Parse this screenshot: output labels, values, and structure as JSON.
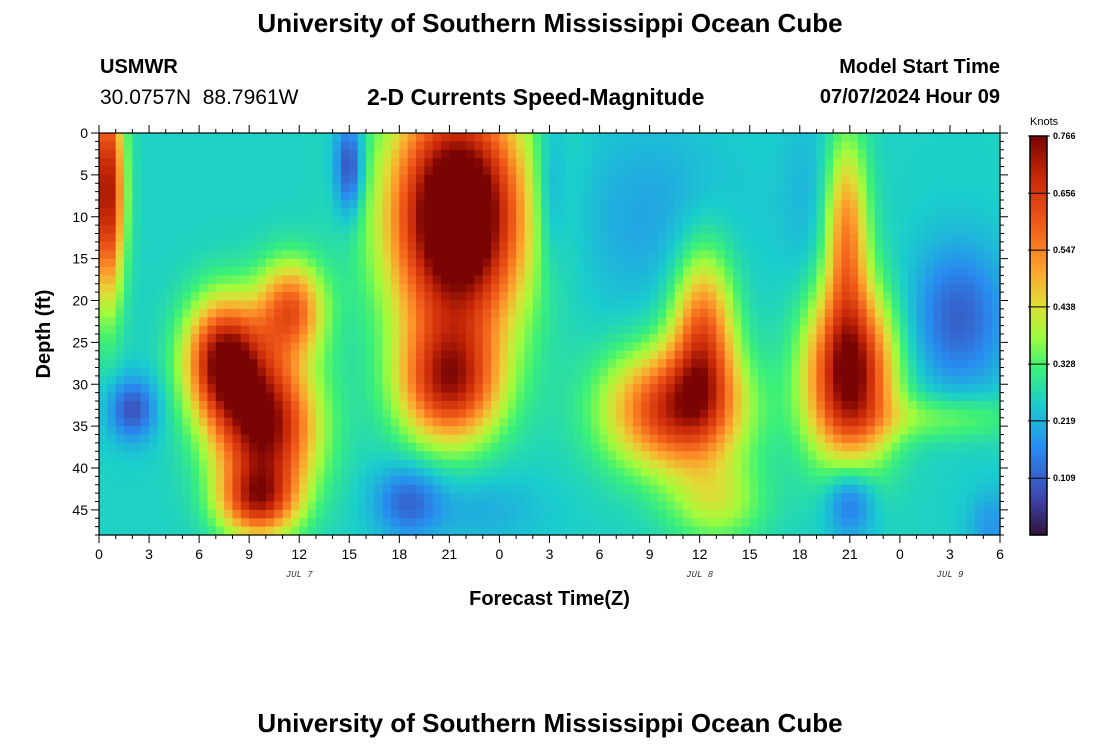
{
  "header": {
    "title_top": "University of Southern Mississippi Ocean Cube",
    "station": "USMWR",
    "coords": "30.0757N  88.7961W",
    "subtitle": "2-D Currents Speed-Magnitude",
    "model_start_label": "Model Start Time",
    "model_start_value": "07/07/2024 Hour 09"
  },
  "footer": {
    "title_bottom": "University of Southern Mississippi Ocean Cube"
  },
  "chart_data": {
    "type": "heatmap",
    "title": "2-D Currents Speed-Magnitude",
    "xlabel": "Forecast Time(Z)",
    "ylabel": "Depth (ft)",
    "x_units": "hours from 00Z Jul 7",
    "xlim": [
      0,
      54
    ],
    "ylim": [
      0,
      48
    ],
    "y_inverted": true,
    "x_ticks": [
      0,
      3,
      6,
      9,
      12,
      15,
      18,
      21,
      24,
      27,
      30,
      33,
      36,
      39,
      42,
      45,
      48,
      51,
      54
    ],
    "x_tick_labels": [
      "0",
      "3",
      "6",
      "9",
      "12",
      "15",
      "18",
      "21",
      "0",
      "3",
      "6",
      "9",
      "12",
      "15",
      "18",
      "21",
      "0",
      "3",
      "6"
    ],
    "date_labels": [
      {
        "x": 12,
        "label": "JUL 7"
      },
      {
        "x": 36,
        "label": "JUL 8"
      },
      {
        "x": 51,
        "label": "JUL 9"
      }
    ],
    "y_ticks": [
      0,
      5,
      10,
      15,
      20,
      25,
      30,
      35,
      40,
      45
    ],
    "colorbar": {
      "unit": "Knots",
      "min": 0.0,
      "max": 0.766,
      "tick_values": [
        0.109,
        0.219,
        0.328,
        0.438,
        0.547,
        0.656,
        0.766
      ],
      "tick_labels": [
        "0.109",
        "0.219",
        "0.328",
        "0.438",
        "0.547",
        "0.656",
        "0.766"
      ]
    },
    "features": [
      {
        "x": 0.5,
        "depth": 7,
        "sx": 0.7,
        "sd": 9,
        "value": 0.48
      },
      {
        "x": 2.0,
        "depth": 33,
        "sx": 1.0,
        "sd": 2.6,
        "value": -0.17
      },
      {
        "x": 7.5,
        "depth": 27,
        "sx": 1.6,
        "sd": 5,
        "value": 0.48
      },
      {
        "x": 10.0,
        "depth": 35,
        "sx": 2.1,
        "sd": 6,
        "value": 0.5
      },
      {
        "x": 9.5,
        "depth": 44,
        "sx": 1.6,
        "sd": 3,
        "value": 0.33
      },
      {
        "x": 11.5,
        "depth": 21,
        "sx": 1.4,
        "sd": 4,
        "value": 0.33
      },
      {
        "x": 15.0,
        "depth": 4,
        "sx": 0.6,
        "sd": 4,
        "value": -0.2
      },
      {
        "x": 21.5,
        "depth": 10,
        "sx": 2.8,
        "sd": 10,
        "value": 0.68
      },
      {
        "x": 21.0,
        "depth": 30,
        "sx": 2.1,
        "sd": 5,
        "value": 0.4
      },
      {
        "x": 18.5,
        "depth": 44,
        "sx": 1.4,
        "sd": 3,
        "value": -0.14
      },
      {
        "x": 23.0,
        "depth": 45,
        "sx": 2.5,
        "sd": 3,
        "value": -0.05
      },
      {
        "x": 27.0,
        "depth": 7,
        "sx": 0.7,
        "sd": 7,
        "value": -0.09
      },
      {
        "x": 34.5,
        "depth": 33,
        "sx": 2.8,
        "sd": 5,
        "value": 0.42
      },
      {
        "x": 36.2,
        "depth": 24,
        "sx": 1.3,
        "sd": 7,
        "value": 0.33
      },
      {
        "x": 33.0,
        "depth": 10,
        "sx": 3.5,
        "sd": 8,
        "value": -0.06
      },
      {
        "x": 37.0,
        "depth": 44,
        "sx": 2.0,
        "sd": 3.5,
        "value": 0.14
      },
      {
        "x": 42.5,
        "depth": 8,
        "sx": 1.2,
        "sd": 8,
        "value": -0.04
      },
      {
        "x": 45.0,
        "depth": 44,
        "sx": 1.0,
        "sd": 3,
        "value": -0.15
      },
      {
        "x": 45.0,
        "depth": 29,
        "sx": 1.8,
        "sd": 7,
        "value": 0.52
      },
      {
        "x": 44.8,
        "depth": 12,
        "sx": 0.9,
        "sd": 8,
        "value": 0.28
      },
      {
        "x": 51.5,
        "depth": 22,
        "sx": 2.0,
        "sd": 6,
        "value": -0.15
      },
      {
        "x": 50.5,
        "depth": 34,
        "sx": 3.5,
        "sd": 2.0,
        "value": 0.1
      },
      {
        "x": 53.5,
        "depth": 47,
        "sx": 1.0,
        "sd": 3,
        "value": -0.08
      }
    ]
  }
}
